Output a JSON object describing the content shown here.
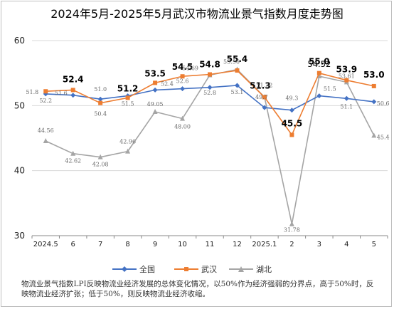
{
  "title": "2024年5月-2025年5月武汉市物流业景气指数月度走势图",
  "note": "物流业景气指数LPI反映物流业经济发展的总体变化情况，以50%作为经济强弱的分界点，高于50%时，反映物流业经济扩张；低于50%，则反映物流业经济收缩。",
  "chart_data": {
    "type": "line",
    "categories": [
      "2024.5",
      "6",
      "7",
      "8",
      "9",
      "10",
      "11",
      "12",
      "2025.1",
      "2",
      "3",
      "4",
      "5"
    ],
    "ylim": [
      30,
      60
    ],
    "yticks": [
      "30",
      "40",
      "50",
      "60"
    ],
    "grid": true,
    "legend_position": "bottom",
    "series": [
      {
        "name": "全国",
        "color": "#4472C4",
        "marker": "diamond",
        "values": [
          51.8,
          51.6,
          51.0,
          51.5,
          52.4,
          52.6,
          52.8,
          53.1,
          49.7,
          49.3,
          51.5,
          51.1,
          50.6
        ],
        "labels": [
          "51.8",
          "51.6",
          "51.0",
          "51.5",
          "52.4",
          "52.6",
          "52.8",
          "53.1",
          "49.7",
          "49.3",
          "51.5",
          "51.1",
          "50.6"
        ]
      },
      {
        "name": "武汉",
        "color": "#ED7D31",
        "marker": "square",
        "values": [
          52.2,
          52.4,
          50.4,
          51.2,
          53.5,
          54.5,
          54.8,
          55.4,
          51.3,
          45.5,
          55.0,
          53.9,
          53.0
        ],
        "labels": [
          "52.2",
          "52.4",
          "50.4",
          "51.2",
          "53.5",
          "54.5",
          "54.8",
          "55.4",
          "51.3",
          "45.5",
          "55.0",
          "53.9",
          "53.0"
        ]
      },
      {
        "name": "湖北",
        "color": "#A5A5A5",
        "marker": "triangle",
        "values": [
          44.56,
          42.62,
          42.08,
          42.96,
          49.05,
          48.0,
          54.69,
          55.56,
          51.32,
          31.78,
          54.52,
          53.61,
          45.4
        ],
        "labels": [
          "44.56",
          "42.62",
          "42.08",
          "42.96",
          "49.05",
          "48.00",
          "54.69",
          "55.56",
          "51.32",
          "31.78",
          "54.52",
          "53.61",
          "45.4"
        ]
      }
    ]
  }
}
